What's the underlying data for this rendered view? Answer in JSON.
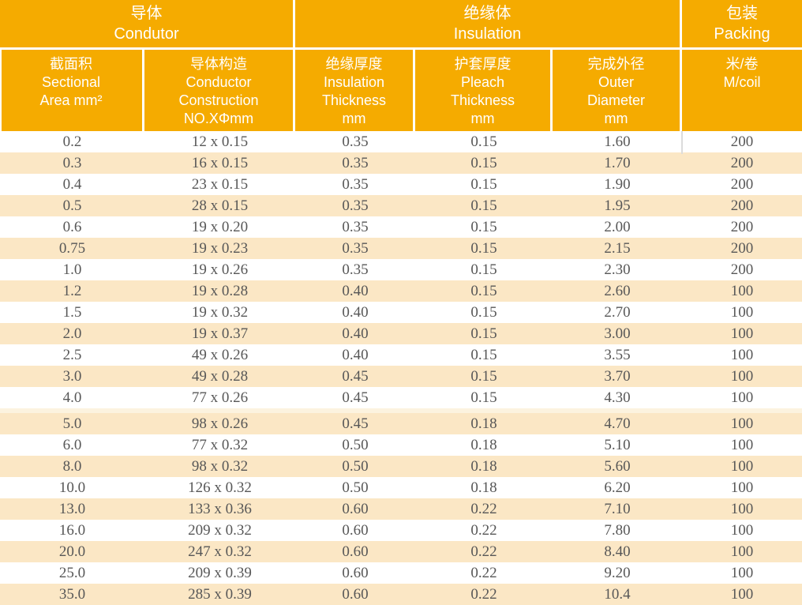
{
  "colors": {
    "header_orange": "#F5AB00",
    "zebra_cream": "#FBE7C5",
    "section_separator": "#FCF3DF",
    "data_text": "#575757",
    "header_text": "#FFFFFF"
  },
  "table": {
    "groups": [
      {
        "zh": "导体",
        "en": "Condutor",
        "text": "导体\nCondutor"
      },
      {
        "zh": "绝缘体",
        "en": "Insulation",
        "text": "绝缘体\nInsulation"
      },
      {
        "zh": "包装",
        "en": "Packing",
        "text": "包装\nPacking"
      }
    ],
    "columns": [
      {
        "zh": "截面积",
        "en": "Sectional Area mm²",
        "text": "截面积\nSectional\nArea mm²"
      },
      {
        "zh": "导体构造",
        "en": "Conductor Construction NO.XΦmm",
        "text": "导体构造\nConductor\nConstruction\nNO.XΦmm"
      },
      {
        "zh": "绝缘厚度",
        "en": "Insulation Thickness mm",
        "text": "绝缘厚度\nInsulation\nThickness\nmm"
      },
      {
        "zh": "护套厚度",
        "en": "Pleach Thickness mm",
        "text": "护套厚度\nPleach\nThickness\nmm"
      },
      {
        "zh": "完成外径",
        "en": "Outer Diameter mm",
        "text": "完成外径\nOuter\nDiameter\nmm"
      },
      {
        "zh": "米/卷",
        "en": "M/coil",
        "text": "米/卷\nM/coil"
      }
    ],
    "section_break_before_row_index": 13,
    "rows": [
      [
        "0.2",
        "12 x 0.15",
        "0.35",
        "0.15",
        "1.60",
        "200"
      ],
      [
        "0.3",
        "16 x 0.15",
        "0.35",
        "0.15",
        "1.70",
        "200"
      ],
      [
        "0.4",
        "23 x 0.15",
        "0.35",
        "0.15",
        "1.90",
        "200"
      ],
      [
        "0.5",
        "28 x 0.15",
        "0.35",
        "0.15",
        "1.95",
        "200"
      ],
      [
        "0.6",
        "19 x 0.20",
        "0.35",
        "0.15",
        "2.00",
        "200"
      ],
      [
        "0.75",
        "19 x 0.23",
        "0.35",
        "0.15",
        "2.15",
        "200"
      ],
      [
        "1.0",
        "19 x 0.26",
        "0.35",
        "0.15",
        "2.30",
        "200"
      ],
      [
        "1.2",
        "19 x 0.28",
        "0.40",
        "0.15",
        "2.60",
        "100"
      ],
      [
        "1.5",
        "19 x 0.32",
        "0.40",
        "0.15",
        "2.70",
        "100"
      ],
      [
        "2.0",
        "19 x 0.37",
        "0.40",
        "0.15",
        "3.00",
        "100"
      ],
      [
        "2.5",
        "49 x 0.26",
        "0.40",
        "0.15",
        "3.55",
        "100"
      ],
      [
        "3.0",
        "49 x 0.28",
        "0.45",
        "0.15",
        "3.70",
        "100"
      ],
      [
        "4.0",
        "77 x 0.26",
        "0.45",
        "0.15",
        "4.30",
        "100"
      ],
      [
        "5.0",
        "98 x 0.26",
        "0.45",
        "0.18",
        "4.70",
        "100"
      ],
      [
        "6.0",
        "77 x 0.32",
        "0.50",
        "0.18",
        "5.10",
        "100"
      ],
      [
        "8.0",
        "98 x 0.32",
        "0.50",
        "0.18",
        "5.60",
        "100"
      ],
      [
        "10.0",
        "126 x 0.32",
        "0.50",
        "0.18",
        "6.20",
        "100"
      ],
      [
        "13.0",
        "133 x 0.36",
        "0.60",
        "0.22",
        "7.10",
        "100"
      ],
      [
        "16.0",
        "209 x 0.32",
        "0.60",
        "0.22",
        "7.80",
        "100"
      ],
      [
        "20.0",
        "247 x 0.32",
        "0.60",
        "0.22",
        "8.40",
        "100"
      ],
      [
        "25.0",
        "209 x 0.39",
        "0.60",
        "0.22",
        "9.20",
        "100"
      ],
      [
        "35.0",
        "285 x 0.39",
        "0.60",
        "0.22",
        "10.4",
        "100"
      ]
    ]
  }
}
